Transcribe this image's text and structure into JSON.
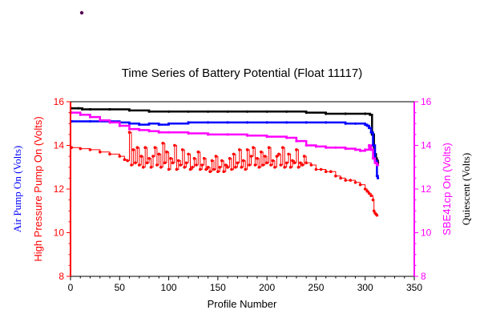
{
  "chart_data": {
    "type": "line",
    "title": "Time Series of Battery Potential (Float 11117)",
    "xlabel": "Profile Number",
    "xlim": [
      0,
      350
    ],
    "x_ticks": [
      0,
      50,
      100,
      150,
      200,
      250,
      300,
      350
    ],
    "ylim": [
      8,
      16
    ],
    "y_ticks": [
      8,
      10,
      12,
      14,
      16
    ],
    "grid": false,
    "colors": {
      "air": "#0000ff",
      "high_pressure": "#ff0000",
      "sbe": "#ff00ff",
      "quiescent": "#000000",
      "marker": "#550055"
    },
    "axis_labels": {
      "left_outer": "Air Pump On (Volts)",
      "left_inner": "High Pressure Pump On (Volts)",
      "right_inner": "SBE41cp On (Volts)",
      "right_outer": "Quiescent (Volts)"
    },
    "series": [
      {
        "key": "quiescent",
        "color": "#000000",
        "x": [
          1,
          8,
          12,
          20,
          40,
          60,
          80,
          100,
          120,
          140,
          160,
          180,
          200,
          220,
          240,
          260,
          280,
          300,
          305,
          307,
          309,
          311,
          312,
          313
        ],
        "y": [
          15.7,
          15.7,
          15.65,
          15.65,
          15.65,
          15.6,
          15.55,
          15.55,
          15.55,
          15.55,
          15.55,
          15.55,
          15.55,
          15.55,
          15.5,
          15.45,
          15.45,
          15.45,
          15.4,
          14.5,
          13.6,
          13.4,
          13.3,
          13.2
        ]
      },
      {
        "key": "air",
        "color": "#0000ff",
        "x": [
          1,
          20,
          40,
          50,
          60,
          70,
          80,
          90,
          100,
          120,
          140,
          160,
          180,
          200,
          220,
          240,
          260,
          280,
          290,
          300,
          302,
          304,
          306,
          308,
          310,
          312,
          313
        ],
        "y": [
          15.1,
          15.1,
          15.1,
          15.05,
          15.0,
          14.95,
          15.0,
          14.95,
          15.0,
          15.05,
          15.05,
          15.05,
          15.05,
          15.05,
          15.05,
          15.05,
          15.05,
          15.0,
          15.0,
          14.95,
          14.9,
          14.8,
          14.6,
          14.0,
          13.3,
          12.6,
          12.5
        ]
      },
      {
        "key": "sbe",
        "color": "#ff00ff",
        "x": [
          1,
          10,
          20,
          30,
          40,
          50,
          60,
          70,
          80,
          90,
          100,
          120,
          140,
          160,
          180,
          200,
          220,
          230,
          240,
          250,
          260,
          270,
          280,
          290,
          295,
          300,
          304,
          306,
          308,
          310,
          312,
          313
        ],
        "y": [
          15.5,
          15.4,
          15.3,
          15.15,
          15.05,
          14.9,
          14.75,
          14.7,
          14.65,
          14.6,
          14.6,
          14.55,
          14.5,
          14.5,
          14.45,
          14.4,
          14.35,
          14.2,
          14.0,
          13.95,
          13.9,
          13.9,
          13.85,
          13.8,
          13.75,
          13.8,
          14.0,
          13.8,
          13.4,
          13.2,
          13.1,
          13.1
        ]
      },
      {
        "key": "high_pressure",
        "color": "#ff0000",
        "x": [
          1,
          10,
          20,
          30,
          40,
          50,
          55,
          58,
          60,
          62,
          64,
          66,
          68,
          70,
          72,
          74,
          76,
          78,
          80,
          82,
          84,
          86,
          88,
          90,
          92,
          94,
          96,
          98,
          100,
          102,
          104,
          106,
          108,
          110,
          112,
          114,
          116,
          118,
          120,
          122,
          124,
          126,
          128,
          130,
          132,
          134,
          136,
          138,
          140,
          142,
          144,
          146,
          148,
          150,
          152,
          154,
          156,
          158,
          160,
          162,
          164,
          166,
          168,
          170,
          172,
          174,
          176,
          178,
          180,
          182,
          184,
          186,
          188,
          190,
          192,
          194,
          196,
          198,
          200,
          202,
          204,
          206,
          208,
          210,
          212,
          214,
          216,
          218,
          220,
          222,
          224,
          226,
          228,
          230,
          232,
          234,
          236,
          238,
          240,
          245,
          250,
          255,
          260,
          265,
          270,
          275,
          280,
          285,
          290,
          295,
          300,
          302,
          304,
          306,
          308,
          309,
          310,
          311,
          312
        ],
        "y": [
          13.9,
          13.85,
          13.8,
          13.7,
          13.6,
          13.5,
          13.35,
          13.3,
          14.6,
          13.1,
          13.8,
          13.2,
          13.9,
          13.1,
          13.5,
          13.0,
          13.9,
          13.2,
          13.4,
          13.0,
          13.5,
          13.9,
          13.1,
          13.6,
          13.0,
          14.1,
          13.2,
          13.7,
          12.9,
          13.4,
          13.2,
          14.0,
          12.9,
          13.3,
          13.1,
          13.8,
          13.0,
          13.2,
          13.6,
          12.9,
          13.0,
          13.4,
          13.1,
          13.7,
          12.9,
          13.1,
          13.4,
          12.9,
          13.0,
          12.8,
          13.3,
          12.9,
          13.5,
          12.8,
          13.0,
          13.3,
          12.8,
          13.1,
          13.0,
          13.4,
          12.9,
          13.6,
          13.0,
          13.2,
          13.8,
          13.0,
          13.3,
          12.9,
          13.8,
          13.1,
          13.5,
          13.9,
          13.1,
          13.4,
          13.0,
          13.7,
          13.1,
          13.5,
          13.2,
          13.9,
          13.1,
          13.3,
          13.0,
          13.5,
          13.6,
          13.1,
          13.9,
          13.0,
          13.2,
          13.6,
          13.0,
          13.3,
          13.2,
          13.8,
          13.0,
          13.2,
          13.1,
          13.5,
          13.2,
          13.1,
          12.9,
          12.9,
          12.8,
          12.8,
          12.6,
          12.5,
          12.4,
          12.4,
          12.3,
          12.2,
          12.0,
          11.9,
          11.8,
          11.7,
          11.5,
          11.0,
          10.9,
          10.85,
          10.8
        ]
      }
    ]
  }
}
